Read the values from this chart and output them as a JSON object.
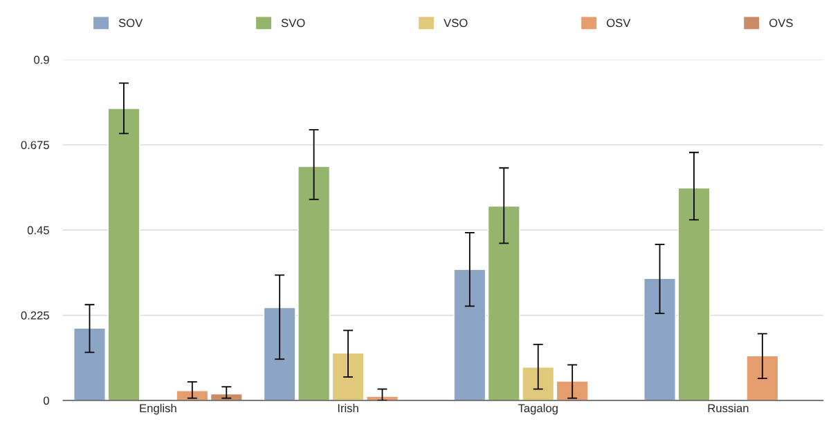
{
  "chart_data": {
    "type": "bar",
    "categories": [
      "English",
      "Irish",
      "Tagalog",
      "Russian"
    ],
    "series": [
      {
        "name": "SOV",
        "color": "#8da5c4",
        "values": [
          0.191,
          0.245,
          0.346,
          0.322
        ],
        "errors": [
          [
            0.127,
            0.253
          ],
          [
            0.109,
            0.331
          ],
          [
            0.249,
            0.443
          ],
          [
            0.23,
            0.412
          ]
        ]
      },
      {
        "name": "SVO",
        "color": "#96b56c",
        "values": [
          0.771,
          0.618,
          0.513,
          0.561
        ],
        "errors": [
          [
            0.705,
            0.838
          ],
          [
            0.531,
            0.715
          ],
          [
            0.415,
            0.614
          ],
          [
            0.477,
            0.655
          ]
        ]
      },
      {
        "name": "VSO",
        "color": "#e0c97a",
        "values": [
          null,
          0.125,
          0.088,
          null
        ],
        "errors": [
          null,
          [
            0.062,
            0.185
          ],
          [
            0.03,
            0.148
          ],
          null
        ]
      },
      {
        "name": "OSV",
        "color": "#e59c6e",
        "values": [
          0.026,
          0.011,
          0.051,
          0.118
        ],
        "errors": [
          [
            0.006,
            0.049
          ],
          [
            0.0,
            0.03
          ],
          [
            0.006,
            0.094
          ],
          [
            0.058,
            0.176
          ]
        ]
      },
      {
        "name": "OVS",
        "color": "#c98c66",
        "values": [
          0.017,
          null,
          null,
          null
        ],
        "errors": [
          [
            0.006,
            0.036
          ],
          null,
          null,
          null
        ]
      }
    ],
    "ylim": [
      0,
      0.9
    ],
    "yticks": [
      0,
      0.225,
      0.45,
      0.675,
      0.9
    ],
    "grid": "y",
    "legend": "top"
  }
}
